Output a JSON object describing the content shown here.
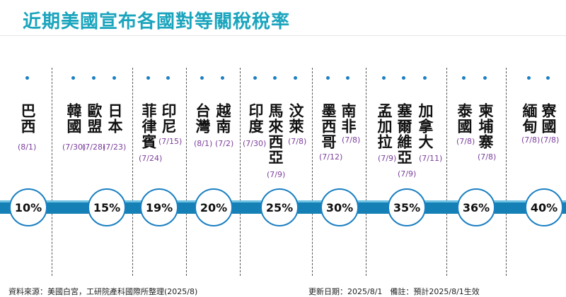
{
  "title": "近期美國宣布各國對等關稅稅率",
  "groups": [
    {
      "rate": "10%",
      "countries": [
        {
          "name": "巴西",
          "date": "(8/1)"
        }
      ]
    },
    {
      "rate": "15%",
      "countries": [
        {
          "name": "韓國",
          "date": "(7/30)"
        },
        {
          "name": "歐盟",
          "date": "(7/28)"
        },
        {
          "name": "日本",
          "date": "(7/23)"
        }
      ]
    },
    {
      "rate": "19%",
      "countries": [
        {
          "name": "菲律賓",
          "date": "(7/24)"
        },
        {
          "name": "印尼",
          "date": "(7/15)"
        }
      ]
    },
    {
      "rate": "20%",
      "countries": [
        {
          "name": "台灣",
          "date": "(8/1)"
        },
        {
          "name": "越南",
          "date": "(7/2)"
        }
      ]
    },
    {
      "rate": "25%",
      "countries": [
        {
          "name": "印度",
          "date": "(7/30)"
        },
        {
          "name": "馬來西亞",
          "date": "(7/9)"
        },
        {
          "name": "汶萊",
          "date": "(7/8)"
        }
      ]
    },
    {
      "rate": "30%",
      "countries": [
        {
          "name": "墨西哥",
          "date": "(7/12)"
        },
        {
          "name": "南非",
          "date": "(7/8)"
        }
      ]
    },
    {
      "rate": "35%",
      "countries": [
        {
          "name": "孟加拉",
          "date": "(7/9)"
        },
        {
          "name": "塞爾維亞",
          "date": "(7/9)"
        },
        {
          "name": "加拿大",
          "date": "(7/11)"
        }
      ]
    },
    {
      "rate": "36%",
      "countries": [
        {
          "name": "泰國",
          "date": "(7/8)"
        },
        {
          "name": "柬埔寨",
          "date": "(7/8)"
        }
      ]
    },
    {
      "rate": "40%",
      "countries": [
        {
          "name": "緬甸",
          "date": "(7/8)"
        },
        {
          "name": "寮國",
          "date": "(7/8)"
        }
      ]
    }
  ],
  "footer": {
    "source": "資料來源：美國白宮，工研院產科國際所整理(2025/8)",
    "update": "更新日期：2025/8/1　備註：預計2025/8/1生效"
  },
  "colors": {
    "title": "#1aa4bd",
    "band": "#1580b6",
    "dot": "#1a7fc2",
    "date": "#7b3f9c"
  }
}
